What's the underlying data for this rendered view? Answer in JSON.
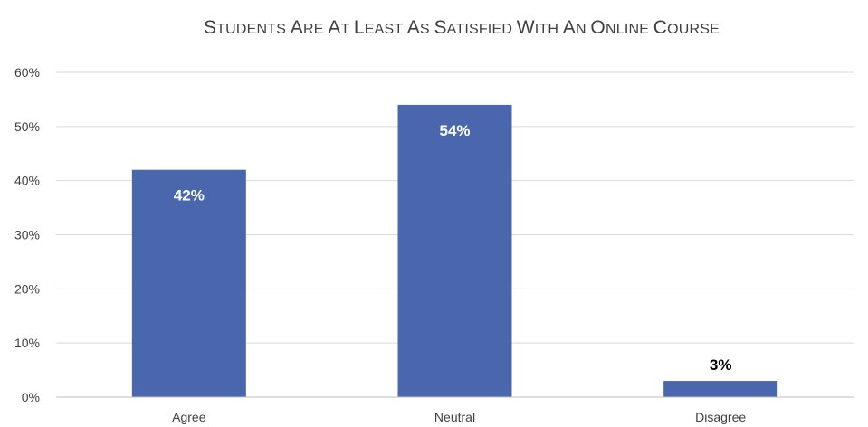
{
  "chart_data": {
    "type": "bar",
    "title": "Students Are at Least as Satisfied with an Online Course",
    "categories": [
      "Agree",
      "Neutral",
      "Disagree"
    ],
    "values": [
      42,
      54,
      3
    ],
    "data_labels": [
      "42%",
      "54%",
      "3%"
    ],
    "y_ticks": [
      "0%",
      "10%",
      "20%",
      "30%",
      "40%",
      "50%",
      "60%"
    ],
    "ylim": [
      0,
      60
    ],
    "y_unit": "%",
    "grid": true,
    "legend": "none",
    "colors": {
      "bar": "#4a67ae",
      "label_inside": "#ffffff",
      "label_outside": "#000000"
    }
  }
}
